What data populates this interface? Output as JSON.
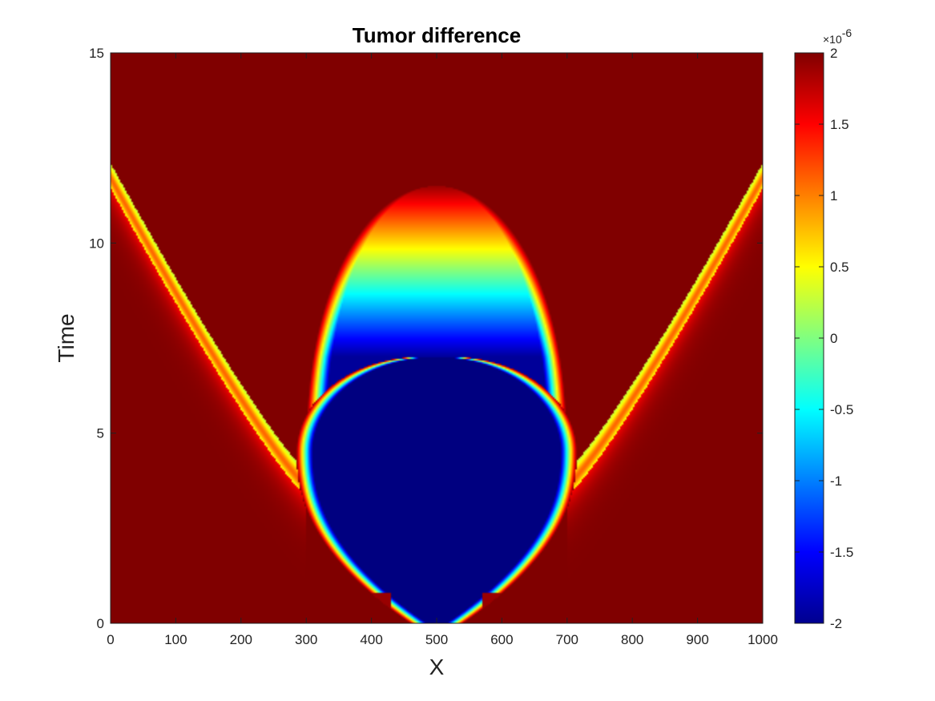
{
  "chart_data": {
    "type": "heatmap",
    "title": "Tumor difference",
    "xlabel": "X",
    "ylabel": "Time",
    "xlim": [
      0,
      1000
    ],
    "ylim": [
      0,
      15
    ],
    "xticks": [
      0,
      100,
      200,
      300,
      400,
      500,
      600,
      700,
      800,
      900,
      1000
    ],
    "yticks": [
      0,
      5,
      10,
      15
    ],
    "colormap": "jet",
    "clim": [
      -2e-06,
      2e-06
    ],
    "colorbar": {
      "ticks": [
        2,
        1.5,
        1,
        0.5,
        0,
        -0.5,
        -1,
        -1.5,
        -2
      ],
      "tick_labels": [
        "2",
        "1.5",
        "1",
        "0.5",
        "0",
        "-0.5",
        "-1",
        "-1.5",
        "-2"
      ],
      "exponent_base": "×10",
      "exponent": "-6",
      "placement": "right"
    },
    "regions": {
      "blue_core": {
        "description_values": "value ≈ -2e-6 inside a dome centered at x=500",
        "center_x": 500,
        "top_time": 7.0,
        "max_half_width_x": 190,
        "max_width_time": 4.5,
        "bottom_time": 0.0
      },
      "inner_transition_top_time": 11.5,
      "outer_front_edge_time": 12.1
    },
    "grid": false
  }
}
